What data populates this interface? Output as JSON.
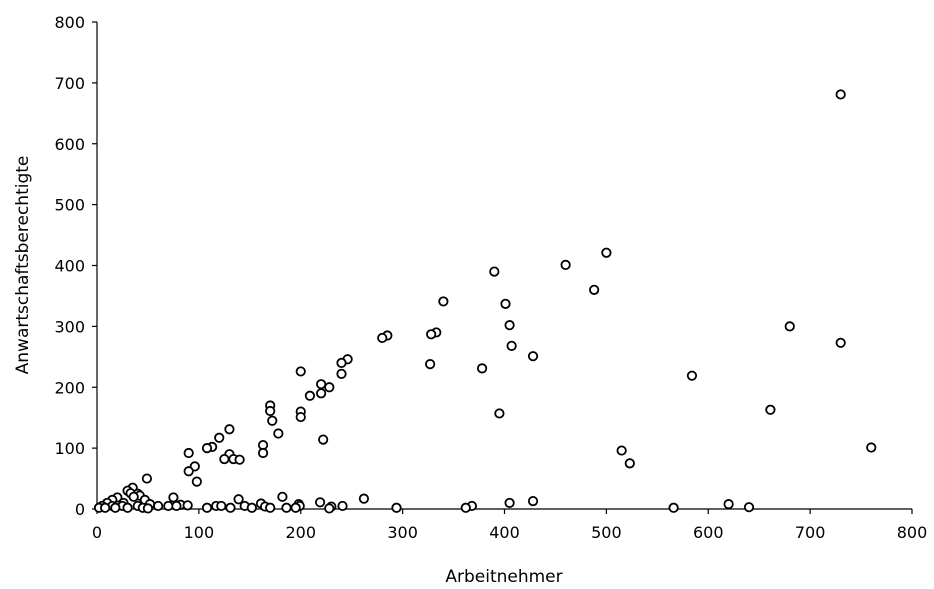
{
  "chart_data": {
    "type": "scatter",
    "title": "",
    "xlabel": "Arbeitnehmer",
    "ylabel": "Anwartschaftsberechtigte",
    "xlim": [
      0,
      800
    ],
    "ylim": [
      0,
      800
    ],
    "xticks": [
      0,
      100,
      200,
      300,
      400,
      500,
      600,
      700,
      800
    ],
    "yticks": [
      0,
      100,
      200,
      300,
      400,
      500,
      600,
      700,
      800
    ],
    "grid": false,
    "legend": "none",
    "marker_color": "#000000",
    "series": [
      {
        "points": [
          [
            730,
            681
          ],
          [
            500,
            421
          ],
          [
            460,
            401
          ],
          [
            390,
            390
          ],
          [
            488,
            360
          ],
          [
            340,
            341
          ],
          [
            401,
            337
          ],
          [
            405,
            302
          ],
          [
            680,
            300
          ],
          [
            333,
            290
          ],
          [
            328,
            287
          ],
          [
            285,
            285
          ],
          [
            280,
            281
          ],
          [
            407,
            268
          ],
          [
            730,
            273
          ],
          [
            428,
            251
          ],
          [
            246,
            246
          ],
          [
            240,
            240
          ],
          [
            327,
            238
          ],
          [
            378,
            231
          ],
          [
            228,
            200
          ],
          [
            200,
            226
          ],
          [
            220,
            205
          ],
          [
            240,
            222
          ],
          [
            584,
            219
          ],
          [
            220,
            190
          ],
          [
            209,
            186
          ],
          [
            170,
            170
          ],
          [
            170,
            161
          ],
          [
            200,
            160
          ],
          [
            661,
            163
          ],
          [
            200,
            151
          ],
          [
            395,
            157
          ],
          [
            172,
            145
          ],
          [
            130,
            131
          ],
          [
            178,
            124
          ],
          [
            120,
            117
          ],
          [
            222,
            114
          ],
          [
            163,
            105
          ],
          [
            113,
            102
          ],
          [
            108,
            100
          ],
          [
            760,
            101
          ],
          [
            515,
            96
          ],
          [
            90,
            92
          ],
          [
            163,
            92
          ],
          [
            130,
            90
          ],
          [
            125,
            82
          ],
          [
            134,
            82
          ],
          [
            140,
            81
          ],
          [
            523,
            75
          ],
          [
            96,
            70
          ],
          [
            90,
            62
          ],
          [
            98,
            45
          ],
          [
            49,
            50
          ],
          [
            35,
            35
          ],
          [
            30,
            30
          ],
          [
            33,
            26
          ],
          [
            40,
            25
          ],
          [
            42,
            22
          ],
          [
            36,
            20
          ],
          [
            20,
            19
          ],
          [
            75,
            19
          ],
          [
            15,
            15
          ],
          [
            47,
            15
          ],
          [
            139,
            16
          ],
          [
            182,
            20
          ],
          [
            262,
            17
          ],
          [
            10,
            10
          ],
          [
            26,
            10
          ],
          [
            52,
            8
          ],
          [
            82,
            7
          ],
          [
            89,
            6
          ],
          [
            161,
            9
          ],
          [
            198,
            8
          ],
          [
            219,
            11
          ],
          [
            405,
            10
          ],
          [
            428,
            13
          ],
          [
            620,
            8
          ],
          [
            5,
            5
          ],
          [
            15,
            5
          ],
          [
            25,
            5
          ],
          [
            40,
            5
          ],
          [
            60,
            5
          ],
          [
            70,
            5
          ],
          [
            78,
            5
          ],
          [
            117,
            5
          ],
          [
            122,
            5
          ],
          [
            145,
            5
          ],
          [
            165,
            4
          ],
          [
            199,
            5
          ],
          [
            230,
            4
          ],
          [
            241,
            5
          ],
          [
            368,
            5
          ],
          [
            640,
            3
          ],
          [
            2,
            2
          ],
          [
            8,
            2
          ],
          [
            18,
            2
          ],
          [
            30,
            2
          ],
          [
            45,
            2
          ],
          [
            50,
            1
          ],
          [
            108,
            2
          ],
          [
            131,
            2
          ],
          [
            152,
            2
          ],
          [
            170,
            2
          ],
          [
            186,
            2
          ],
          [
            195,
            2
          ],
          [
            228,
            1
          ],
          [
            294,
            2
          ],
          [
            362,
            2
          ],
          [
            566,
            2
          ]
        ]
      }
    ]
  }
}
